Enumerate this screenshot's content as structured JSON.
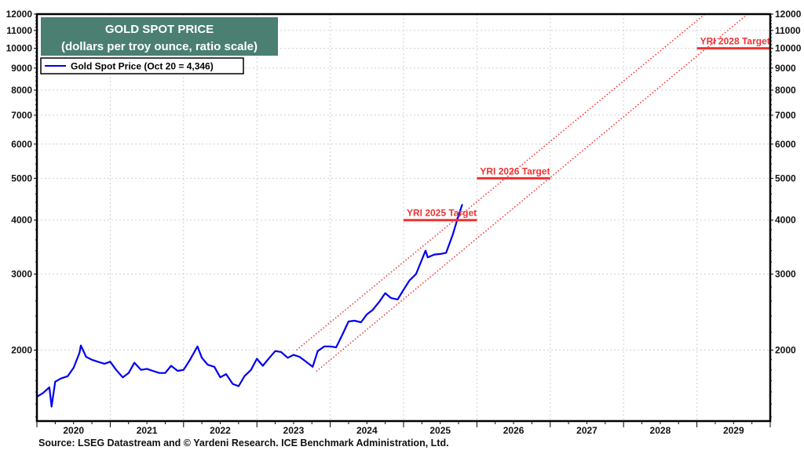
{
  "chart_data": {
    "type": "line",
    "title": "GOLD SPOT PRICE",
    "subtitle": "(dollars per troy ounce, ratio scale)",
    "yscale": "log",
    "ylim": [
      1370,
      12000
    ],
    "xlim": [
      2020,
      2030
    ],
    "grid": true,
    "legend_placement": "top-left",
    "y_ticks": [
      2000,
      3000,
      4000,
      5000,
      6000,
      7000,
      8000,
      9000,
      10000,
      11000,
      12000
    ],
    "x_tick_labels": [
      "2020",
      "2021",
      "2022",
      "2023",
      "2024",
      "2025",
      "2026",
      "2027",
      "2028",
      "2029"
    ],
    "series": [
      {
        "name": "Gold Spot Price (Oct 20 = 4,346)",
        "color": "#0000ee",
        "x": [
          2020.0,
          2020.08,
          2020.17,
          2020.2,
          2020.25,
          2020.33,
          2020.42,
          2020.5,
          2020.58,
          2020.6,
          2020.67,
          2020.75,
          2020.83,
          2020.92,
          2021.0,
          2021.08,
          2021.17,
          2021.25,
          2021.33,
          2021.42,
          2021.5,
          2021.58,
          2021.67,
          2021.75,
          2021.83,
          2021.92,
          2022.0,
          2022.08,
          2022.19,
          2022.25,
          2022.33,
          2022.42,
          2022.5,
          2022.58,
          2022.67,
          2022.75,
          2022.83,
          2022.92,
          2023.0,
          2023.08,
          2023.17,
          2023.25,
          2023.33,
          2023.42,
          2023.5,
          2023.58,
          2023.67,
          2023.76,
          2023.83,
          2023.92,
          2024.0,
          2024.08,
          2024.17,
          2024.25,
          2024.33,
          2024.42,
          2024.5,
          2024.58,
          2024.67,
          2024.75,
          2024.83,
          2024.92,
          2025.0,
          2025.08,
          2025.17,
          2025.3,
          2025.33,
          2025.42,
          2025.5,
          2025.58,
          2025.67,
          2025.75,
          2025.8
        ],
        "y": [
          1560,
          1590,
          1640,
          1480,
          1690,
          1720,
          1740,
          1820,
          1970,
          2050,
          1930,
          1900,
          1880,
          1860,
          1880,
          1800,
          1730,
          1770,
          1870,
          1800,
          1810,
          1790,
          1770,
          1770,
          1840,
          1790,
          1800,
          1890,
          2040,
          1920,
          1850,
          1830,
          1730,
          1760,
          1670,
          1650,
          1740,
          1800,
          1910,
          1840,
          1920,
          1990,
          1980,
          1920,
          1950,
          1930,
          1880,
          1830,
          1990,
          2040,
          2040,
          2030,
          2180,
          2330,
          2340,
          2320,
          2420,
          2480,
          2590,
          2710,
          2640,
          2620,
          2760,
          2900,
          3000,
          3400,
          3280,
          3330,
          3340,
          3360,
          3700,
          4100,
          4346
        ]
      }
    ],
    "trend_lines": [
      {
        "name": "upper-channel",
        "x": [
          2023.54,
          2029.11
        ],
        "y": [
          2000,
          12000
        ],
        "color": "#ee3333"
      },
      {
        "name": "lower-channel",
        "x": [
          2023.81,
          2029.69
        ],
        "y": [
          1785,
          12000
        ],
        "color": "#ee3333"
      }
    ],
    "targets": [
      {
        "label": "YRI 2025 Target",
        "value": 4000,
        "x": [
          2025.0,
          2026.0
        ]
      },
      {
        "label": "YRI 2026 Target",
        "value": 5000,
        "x": [
          2026.0,
          2027.0
        ]
      },
      {
        "label": "YRI 2028 Target",
        "value": 10000,
        "x": [
          2029.0,
          2030.0
        ]
      }
    ],
    "target_color": "#ee3333",
    "title_box_color": "#4a7f72",
    "source": "Source: LSEG Datastream and © Yardeni Research. ICE Benchmark Administration, Ltd."
  }
}
